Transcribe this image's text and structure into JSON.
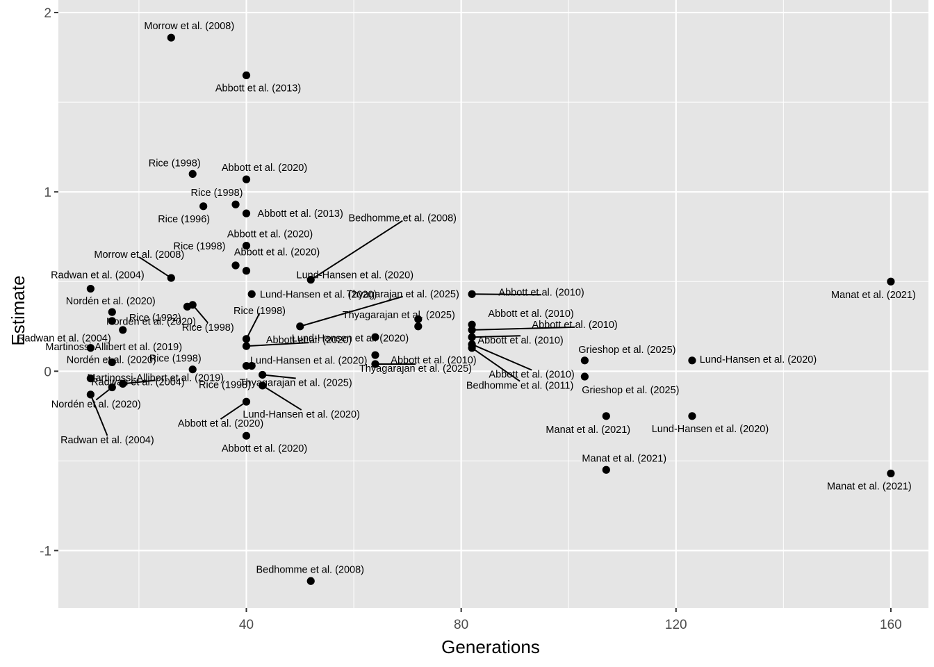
{
  "chart_data": {
    "type": "scatter",
    "xlabel": "Generations",
    "ylabel": "Estimate",
    "xlim": [
      5,
      167
    ],
    "ylim": [
      -1.32,
      2.07
    ],
    "x_ticks": [
      40,
      80,
      120,
      160
    ],
    "y_ticks": [
      -1,
      0,
      1,
      2
    ],
    "grid": true,
    "colors": {
      "panel": "#e5e5e5",
      "grid": "#ffffff",
      "point": "#000000",
      "text": "#000000",
      "tick": "#4d4d4d"
    },
    "points": [
      {
        "x": 26,
        "y": 1.86,
        "label": "Morrow et al. (2008)"
      },
      {
        "x": 40,
        "y": 1.65,
        "label": "Abbott et al. (2013)"
      },
      {
        "x": 30,
        "y": 1.1,
        "label": "Rice (1998)"
      },
      {
        "x": 40,
        "y": 1.07,
        "label": "Abbott et al. (2020)"
      },
      {
        "x": 32,
        "y": 0.92,
        "label": "Rice (1996)"
      },
      {
        "x": 38,
        "y": 0.93,
        "label": "Rice (1998)"
      },
      {
        "x": 40,
        "y": 0.88,
        "label": "Abbott et al. (2013)"
      },
      {
        "x": 40,
        "y": 0.7,
        "label": "Abbott et al. (2020)"
      },
      {
        "x": 26,
        "y": 0.52,
        "label": "Morrow et al. (2008)"
      },
      {
        "x": 38,
        "y": 0.59,
        "label": "Rice (1998)"
      },
      {
        "x": 40,
        "y": 0.56,
        "label": "Abbott et al. (2020)"
      },
      {
        "x": 52,
        "y": 0.51,
        "label": "Bedhomme et al. (2008)"
      },
      {
        "x": 11,
        "y": 0.46,
        "label": "Radwan et al. (2004)"
      },
      {
        "x": 30,
        "y": 0.37,
        "label": "Rice (1998)"
      },
      {
        "x": 29,
        "y": 0.36,
        "label": "Nordén et al. (2020)"
      },
      {
        "x": 41,
        "y": 0.43,
        "label": "Lund-Hansen et al. (2020)"
      },
      {
        "x": 50,
        "y": 0.25,
        "label": "Thyagarajan et al. (2025)"
      },
      {
        "x": 72,
        "y": 0.29,
        "label": "Lund-Hansen et al. (2020)"
      },
      {
        "x": 72,
        "y": 0.25,
        "label": "Thyagarajan et al. (2025)"
      },
      {
        "x": 82,
        "y": 0.43,
        "label": "Abbott et al. (2010)"
      },
      {
        "x": 160,
        "y": 0.5,
        "label": "Manat et al. (2021)"
      },
      {
        "x": 15,
        "y": 0.33,
        "label": "Nordén et al. (2020)"
      },
      {
        "x": 15,
        "y": 0.28,
        "label": "Rice (1992)"
      },
      {
        "x": 17,
        "y": 0.23,
        "label": "Martinossi-Allibert et al. (2019)"
      },
      {
        "x": 11,
        "y": 0.13,
        "label": "Radwan et al. (2004)"
      },
      {
        "x": 40,
        "y": 0.18,
        "label": "Rice (1998)"
      },
      {
        "x": 40,
        "y": 0.14,
        "label": "Abbott et al. (2020)"
      },
      {
        "x": 64,
        "y": 0.19,
        "label": "Lund-Hansen et al. (2020)"
      },
      {
        "x": 82,
        "y": 0.26,
        "label": "Abbott et al. (2010)"
      },
      {
        "x": 82,
        "y": 0.23,
        "label": "Abbott et al. (2010)"
      },
      {
        "x": 82,
        "y": 0.19,
        "label": "Abbott et al. (2010)"
      },
      {
        "x": 15,
        "y": 0.05,
        "label": "Nordén et al. (2020)"
      },
      {
        "x": 30,
        "y": 0.01,
        "label": "Rice (1998)"
      },
      {
        "x": 40,
        "y": 0.03,
        "label": "Rice (1998)"
      },
      {
        "x": 41,
        "y": 0.03,
        "label": "Lund-Hansen et al. (2020)"
      },
      {
        "x": 64,
        "y": 0.09,
        "label": "Abbott et al. (2010)"
      },
      {
        "x": 64,
        "y": 0.04,
        "label": "Thyagarajan et al. (2025)"
      },
      {
        "x": 82,
        "y": 0.15,
        "label": "Abbott et al. (2010)"
      },
      {
        "x": 82,
        "y": 0.13,
        "label": "Bedhomme et al. (2011)"
      },
      {
        "x": 103,
        "y": 0.06,
        "label": "Grieshop et al. (2025)"
      },
      {
        "x": 123,
        "y": 0.06,
        "label": "Lund-Hansen et al. (2020)"
      },
      {
        "x": 11,
        "y": -0.04,
        "label": "Radwan et al. (2004)"
      },
      {
        "x": 17,
        "y": -0.07,
        "label": "Martinossi-Allibert et al. (2019)"
      },
      {
        "x": 15,
        "y": -0.09,
        "label": "Nordén et al. (2020)"
      },
      {
        "x": 11,
        "y": -0.13,
        "label": "Radwan et al. (2004)"
      },
      {
        "x": 43,
        "y": -0.02,
        "label": "Thyagarajan et al. (2025)"
      },
      {
        "x": 43,
        "y": -0.08,
        "label": "Lund-Hansen et al. (2020)"
      },
      {
        "x": 40,
        "y": -0.17,
        "label": "Abbott et al. (2020)"
      },
      {
        "x": 40,
        "y": -0.36,
        "label": "Abbott et al. (2020)"
      },
      {
        "x": 103,
        "y": -0.03,
        "label": "Grieshop et al. (2025)"
      },
      {
        "x": 107,
        "y": -0.25,
        "label": "Manat et al. (2021)"
      },
      {
        "x": 123,
        "y": -0.25,
        "label": "Lund-Hansen et al. (2020)"
      },
      {
        "x": 107,
        "y": -0.55,
        "label": "Manat et al. (2021)"
      },
      {
        "x": 160,
        "y": -0.57,
        "label": "Manat et al. (2021)"
      },
      {
        "x": 52,
        "y": -1.17,
        "label": "Bedhomme et al. (2008)"
      }
    ]
  }
}
